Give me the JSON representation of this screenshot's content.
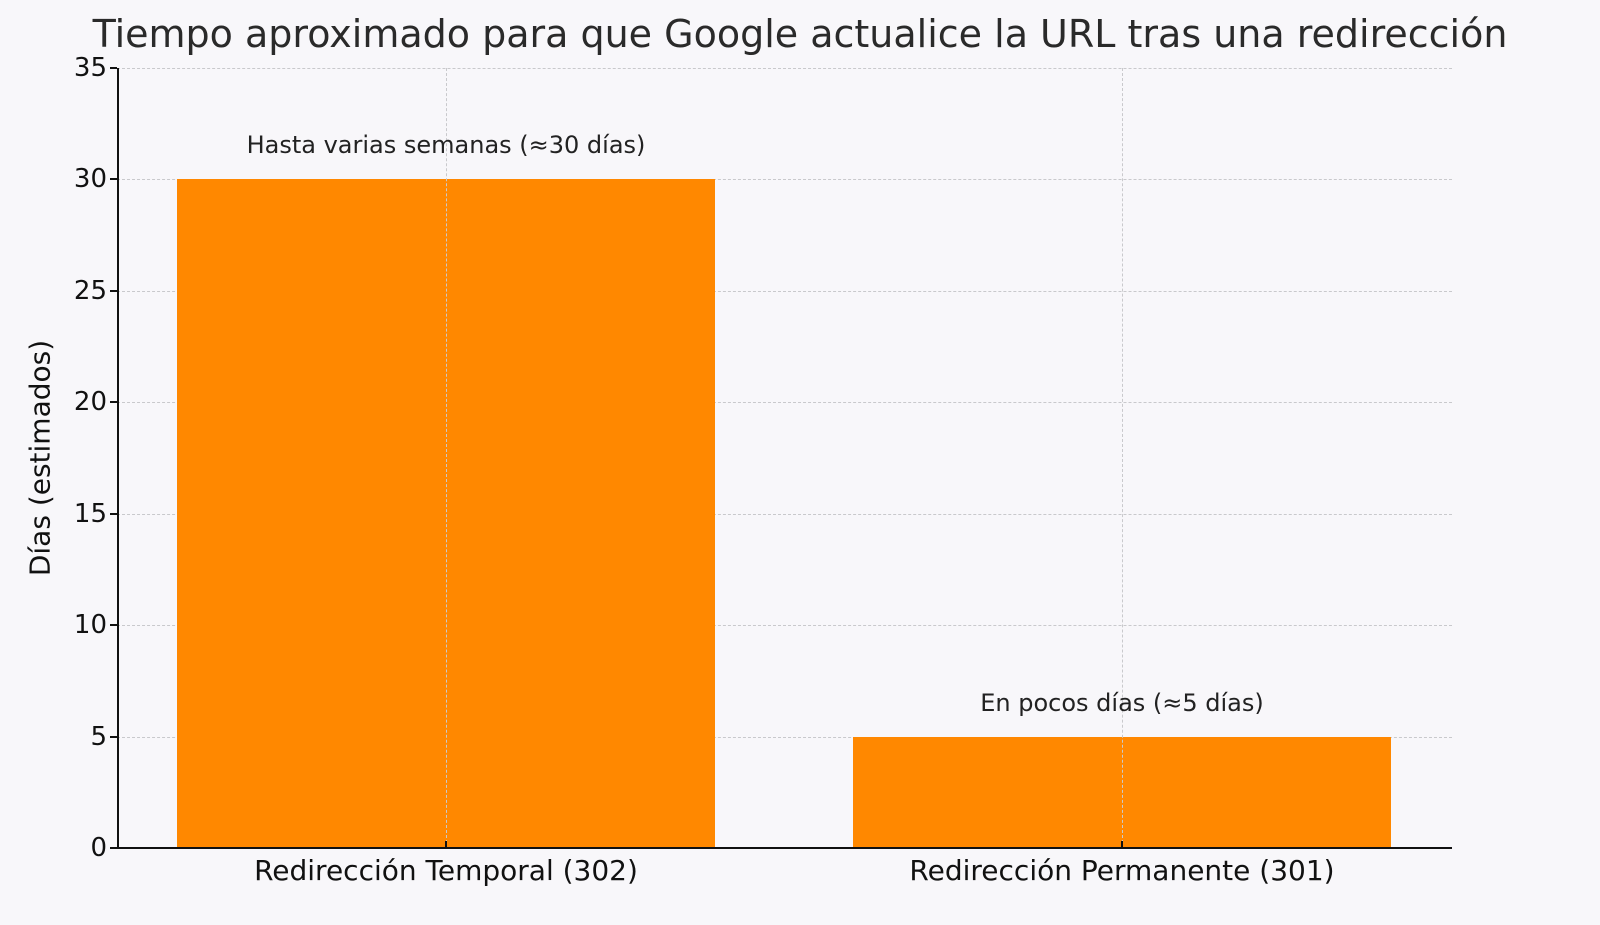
{
  "chart_data": {
    "type": "bar",
    "title": "Tiempo aproximado para que Google actualice la URL tras una redirección",
    "xlabel": "",
    "ylabel": "Días (estimados)",
    "categories": [
      "Redirección Temporal (302)",
      "Redirección Permanente (301)"
    ],
    "values": [
      30,
      5
    ],
    "annotations": [
      "Hasta varias semanas (≈30 días)",
      "En pocos días (≈5 días)"
    ],
    "ylim": [
      0,
      35
    ],
    "yticks": [
      0,
      5,
      10,
      15,
      20,
      25,
      30,
      35
    ],
    "grid": true,
    "legend": null,
    "bar_color": "#ff8800",
    "background_color": "#f8f7fa"
  }
}
